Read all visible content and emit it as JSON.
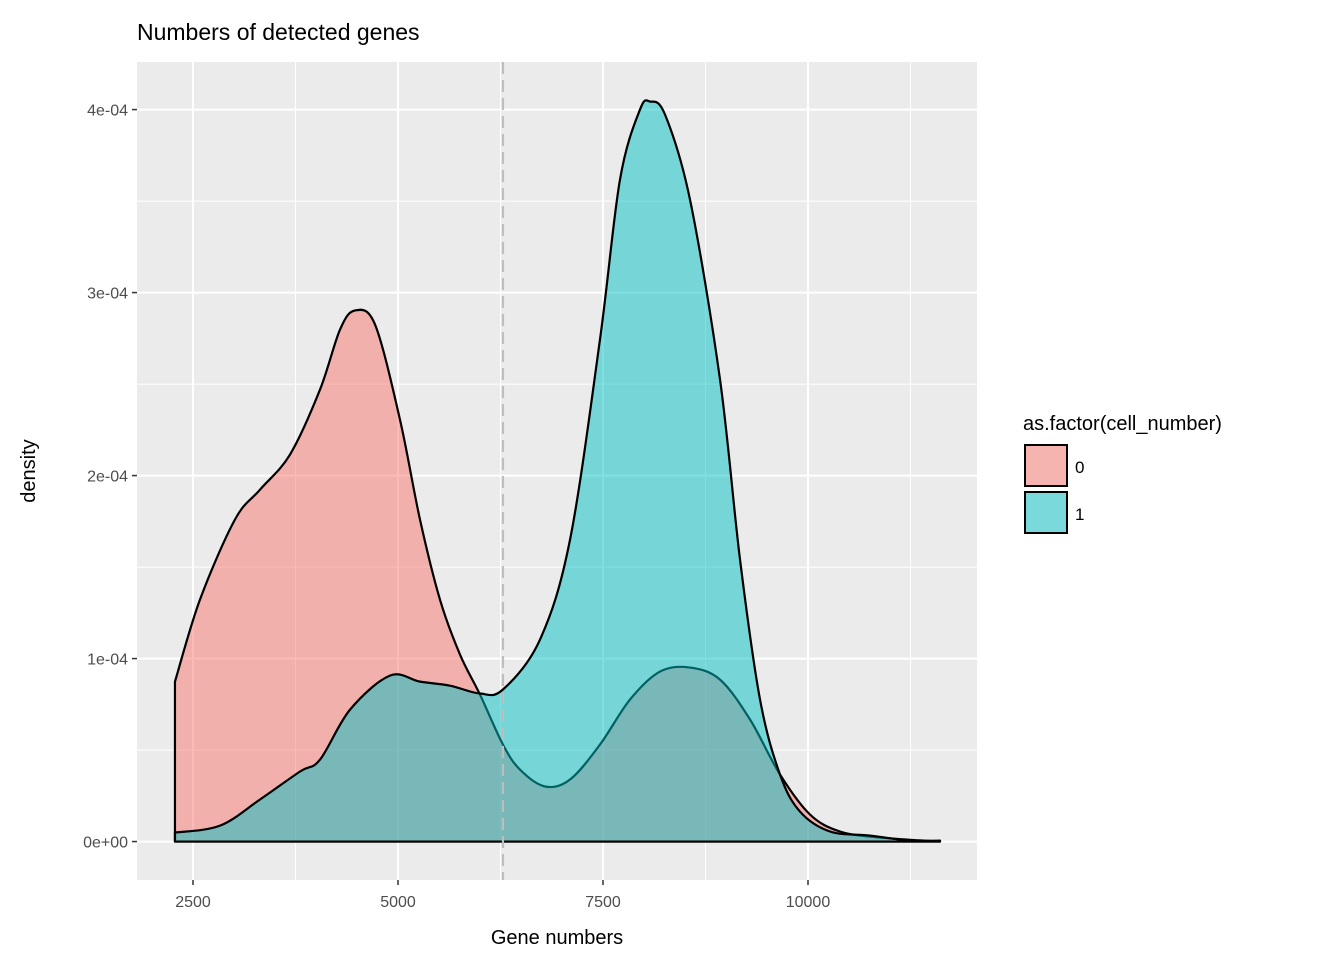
{
  "chart_data": {
    "type": "area",
    "title": "Numbers of detected genes",
    "xlabel": "Gene numbers",
    "ylabel": "density",
    "xlim": [
      1817,
      12061
    ],
    "ylim": [
      -2.1e-05,
      0.000426
    ],
    "x_ticks": [
      2500,
      5000,
      7500,
      10000
    ],
    "x_tick_labels": [
      "2500",
      "5000",
      "7500",
      "10000"
    ],
    "y_ticks": [
      0,
      0.0001,
      0.0002,
      0.0003,
      0.0004
    ],
    "y_tick_labels": [
      "0e+00",
      "1e-04",
      "2e-04",
      "3e-04",
      "4e-04"
    ],
    "grid": true,
    "vline": {
      "x": 6280,
      "style": "dashed",
      "color": "#BEBEBE"
    },
    "legend": {
      "title": "as.factor(cell_number)",
      "placement": "right"
    },
    "series": [
      {
        "name": "0",
        "color": "#F8766D",
        "alpha": 0.5,
        "x": [
          2280,
          2585,
          3012,
          3317,
          3683,
          4049,
          4293,
          4476,
          4720,
          5024,
          5268,
          5512,
          5756,
          6000,
          6280,
          6488,
          6793,
          7098,
          7463,
          7829,
          8195,
          8561,
          8927,
          9293,
          9659,
          10024,
          10390,
          10878,
          11610
        ],
        "y": [
          0.874,
          1.322,
          1.76,
          1.923,
          2.115,
          2.47,
          2.798,
          2.902,
          2.825,
          2.306,
          1.76,
          1.322,
          1.022,
          0.803,
          0.53,
          0.393,
          0.301,
          0.339,
          0.53,
          0.776,
          0.929,
          0.951,
          0.885,
          0.667,
          0.366,
          0.148,
          0.055,
          0.022,
          0.0
        ],
        "y_scale": 0.0001
      },
      {
        "name": "1",
        "color": "#00BFC4",
        "alpha": 0.5,
        "x": [
          2280,
          2829,
          3317,
          3805,
          4049,
          4415,
          4902,
          5268,
          5634,
          6000,
          6280,
          6732,
          7098,
          7463,
          7707,
          7951,
          8073,
          8256,
          8561,
          8927,
          9171,
          9415,
          9659,
          9902,
          10268,
          10756,
          11244,
          11610
        ],
        "y": [
          0.049,
          0.087,
          0.23,
          0.383,
          0.448,
          0.721,
          0.907,
          0.874,
          0.852,
          0.809,
          0.831,
          1.104,
          1.65,
          2.743,
          3.617,
          4.0,
          4.044,
          3.973,
          3.508,
          2.525,
          1.541,
          0.776,
          0.366,
          0.164,
          0.055,
          0.033,
          0.005,
          0.005
        ],
        "y_scale": 0.0001
      }
    ]
  }
}
